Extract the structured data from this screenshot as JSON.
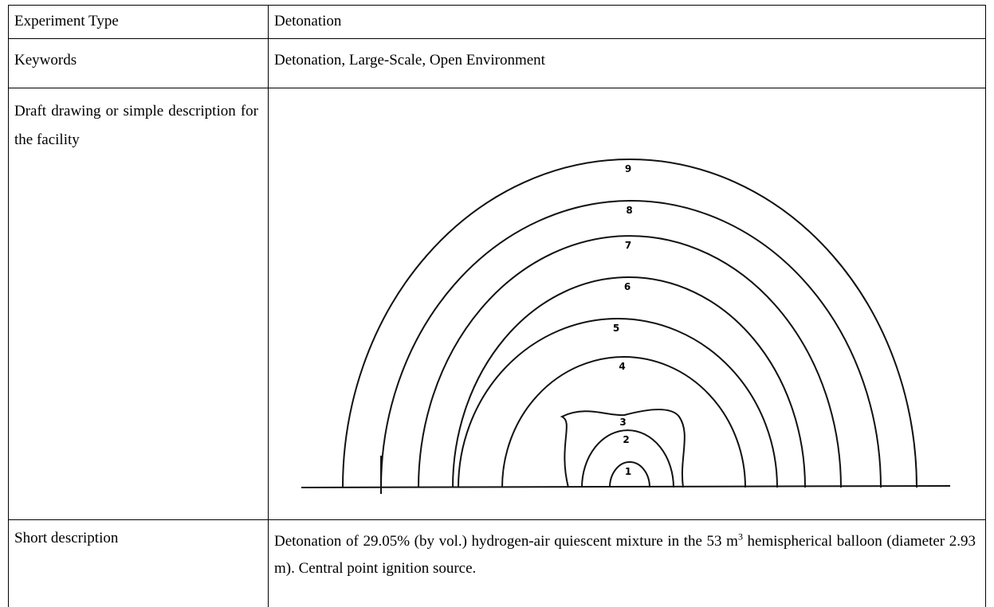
{
  "table": {
    "rows": [
      {
        "label": "Experiment Type",
        "value": "Detonation"
      },
      {
        "label": "Keywords",
        "value": "Detonation, Large-Scale, Open Environment"
      },
      {
        "label": "Draft drawing or simple description for the facility",
        "drawing": {
          "contour_labels": [
            "1",
            "2",
            "3",
            "4",
            "5",
            "6",
            "7",
            "8",
            "9"
          ]
        }
      },
      {
        "label": "Short description",
        "value_parts": [
          "Detonation of 29.05% (by vol.) hydrogen-air quiescent mixture in the 53 m",
          "3",
          " hemispherical balloon (diameter 2.93 m). Central point ignition source."
        ]
      }
    ]
  }
}
